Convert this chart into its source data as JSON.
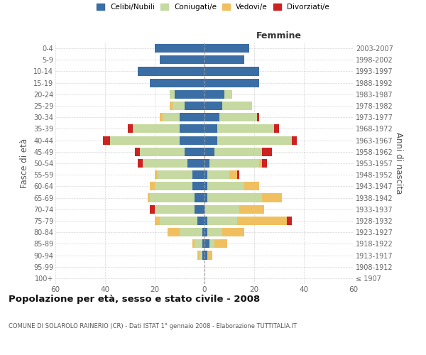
{
  "age_groups": [
    "100+",
    "95-99",
    "90-94",
    "85-89",
    "80-84",
    "75-79",
    "70-74",
    "65-69",
    "60-64",
    "55-59",
    "50-54",
    "45-49",
    "40-44",
    "35-39",
    "30-34",
    "25-29",
    "20-24",
    "15-19",
    "10-14",
    "5-9",
    "0-4"
  ],
  "birth_years": [
    "≤ 1907",
    "1908-1912",
    "1913-1917",
    "1918-1922",
    "1923-1927",
    "1928-1932",
    "1933-1937",
    "1938-1942",
    "1943-1947",
    "1948-1952",
    "1953-1957",
    "1958-1962",
    "1963-1967",
    "1968-1972",
    "1973-1977",
    "1978-1982",
    "1983-1987",
    "1988-1992",
    "1993-1997",
    "1998-2002",
    "2003-2007"
  ],
  "male_celibi": [
    0,
    0,
    1,
    1,
    1,
    3,
    4,
    4,
    5,
    5,
    7,
    8,
    10,
    10,
    10,
    8,
    12,
    22,
    27,
    18,
    20
  ],
  "male_coniugati": [
    0,
    0,
    1,
    3,
    9,
    15,
    16,
    18,
    15,
    14,
    18,
    18,
    28,
    19,
    7,
    5,
    2,
    0,
    0,
    0,
    0
  ],
  "male_vedovi": [
    0,
    0,
    1,
    1,
    5,
    2,
    0,
    1,
    2,
    1,
    0,
    0,
    0,
    0,
    1,
    1,
    0,
    0,
    0,
    0,
    0
  ],
  "male_divorziati": [
    0,
    0,
    0,
    0,
    0,
    0,
    2,
    0,
    0,
    0,
    2,
    2,
    3,
    2,
    0,
    0,
    0,
    0,
    0,
    0,
    0
  ],
  "female_celibi": [
    0,
    0,
    1,
    2,
    1,
    1,
    0,
    1,
    1,
    1,
    2,
    4,
    5,
    5,
    6,
    7,
    8,
    22,
    22,
    16,
    18
  ],
  "female_coniugati": [
    0,
    0,
    0,
    2,
    6,
    12,
    14,
    22,
    15,
    9,
    20,
    19,
    30,
    23,
    15,
    12,
    3,
    0,
    0,
    0,
    0
  ],
  "female_vedovi": [
    0,
    0,
    2,
    5,
    9,
    20,
    10,
    8,
    6,
    3,
    1,
    0,
    0,
    0,
    0,
    0,
    0,
    0,
    0,
    0,
    0
  ],
  "female_divorziati": [
    0,
    0,
    0,
    0,
    0,
    2,
    0,
    0,
    0,
    1,
    2,
    4,
    2,
    2,
    1,
    0,
    0,
    0,
    0,
    0,
    0
  ],
  "colors": {
    "celibi": "#3a6ea5",
    "coniugati": "#c5d9a0",
    "vedovi": "#f0c060",
    "divorziati": "#cc2222"
  },
  "xlim": 60,
  "title": "Popolazione per età, sesso e stato civile - 2008",
  "subtitle": "COMUNE DI SOLAROLO RAINERIO (CR) - Dati ISTAT 1° gennaio 2008 - Elaborazione TUTTITALIA.IT",
  "ylabel_left": "Fasce di età",
  "ylabel_right": "Anni di nascita",
  "xlabel_female": "Femmine",
  "legend_labels": [
    "Celibi/Nubili",
    "Coniugati/e",
    "Vedovi/e",
    "Divorziati/e"
  ],
  "background_color": "#ffffff",
  "grid_color": "#cccccc"
}
